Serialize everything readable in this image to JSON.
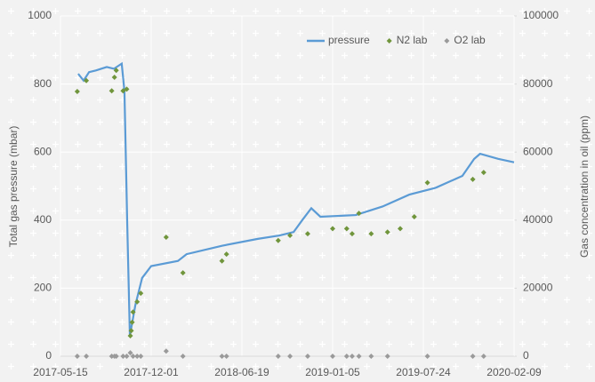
{
  "chart_data": {
    "type": "line",
    "y_label": "Total gas pressure (mbar)",
    "y2_label": "Gas concentration in oil (ppm)",
    "xlim": [
      "2017-05-15",
      "2020-02-09"
    ],
    "xticks": [
      "2017-05-15",
      "2017-12-01",
      "2018-06-19",
      "2019-01-05",
      "2019-07-24",
      "2020-02-09"
    ],
    "ylim": [
      0,
      1000
    ],
    "yticks": [
      0,
      200,
      400,
      600,
      800,
      1000
    ],
    "y2lim": [
      0,
      100000
    ],
    "y2ticks": [
      0,
      20000,
      40000,
      60000,
      80000,
      100000
    ],
    "grid": true,
    "legend": "upper right",
    "series": [
      {
        "name": "pressure",
        "type": "line",
        "color": "#5b9bd5",
        "x": [
          "2017-06-23",
          "2017-07-05",
          "2017-07-17",
          "2017-08-01",
          "2017-08-25",
          "2017-09-10",
          "2017-09-27",
          "2017-10-03",
          "2017-10-09",
          "2017-10-15",
          "2017-10-27",
          "2017-11-11",
          "2017-12-01",
          "2018-01-29",
          "2018-02-17",
          "2018-05-07",
          "2018-07-24",
          "2018-09-10",
          "2018-10-11",
          "2018-10-30",
          "2018-11-19",
          "2018-12-09",
          "2019-02-25",
          "2019-04-25",
          "2019-06-23",
          "2019-08-20",
          "2019-10-18",
          "2019-11-13",
          "2019-11-26",
          "2020-01-05",
          "2020-02-09"
        ],
        "values": [
          830,
          810,
          835,
          840,
          850,
          845,
          860,
          780,
          400,
          60,
          150,
          230,
          265,
          280,
          300,
          325,
          345,
          355,
          365,
          400,
          435,
          410,
          415,
          440,
          475,
          495,
          530,
          580,
          595,
          580,
          570
        ]
      },
      {
        "name": "N2 lab",
        "type": "scatter",
        "axis": "y2",
        "color": "#70953c",
        "x": [
          "2017-06-21",
          "2017-07-11",
          "2017-09-05",
          "2017-09-11",
          "2017-09-15",
          "2017-09-30",
          "2017-10-08",
          "2017-10-16",
          "2017-10-18",
          "2017-10-20",
          "2017-10-22",
          "2017-10-31",
          "2017-11-08",
          "2018-01-03",
          "2018-02-09",
          "2018-05-06",
          "2018-05-16",
          "2018-09-07",
          "2018-10-03",
          "2018-11-11",
          "2019-01-05",
          "2019-02-05",
          "2019-02-17",
          "2019-03-04",
          "2019-03-31",
          "2019-05-06",
          "2019-06-03",
          "2019-07-04",
          "2019-08-02",
          "2019-11-10",
          "2019-12-04"
        ],
        "values": [
          77800,
          81000,
          78000,
          82000,
          84000,
          78000,
          78500,
          6000,
          7500,
          10000,
          13000,
          16000,
          18500,
          35000,
          24500,
          28000,
          30000,
          34000,
          35500,
          36000,
          37500,
          37500,
          36000,
          42000,
          36000,
          36500,
          37500,
          41000,
          51000,
          52000,
          54000
        ]
      },
      {
        "name": "O2 lab",
        "type": "scatter",
        "axis": "y2",
        "color": "#9a9a9a",
        "x": [
          "2017-06-21",
          "2017-07-11",
          "2017-09-05",
          "2017-09-11",
          "2017-09-15",
          "2017-09-30",
          "2017-10-08",
          "2017-10-16",
          "2017-10-22",
          "2017-10-31",
          "2017-11-08",
          "2018-01-03",
          "2018-02-09",
          "2018-05-06",
          "2018-05-16",
          "2018-09-07",
          "2018-10-03",
          "2018-11-11",
          "2019-01-05",
          "2019-02-05",
          "2019-02-17",
          "2019-03-04",
          "2019-03-31",
          "2019-05-06",
          "2019-08-02",
          "2019-11-10",
          "2019-12-04"
        ],
        "values": [
          0,
          0,
          0,
          0,
          0,
          0,
          0,
          1000,
          0,
          0,
          0,
          1500,
          0,
          0,
          0,
          0,
          0,
          0,
          0,
          0,
          0,
          0,
          0,
          0,
          0,
          0,
          0
        ]
      }
    ]
  }
}
